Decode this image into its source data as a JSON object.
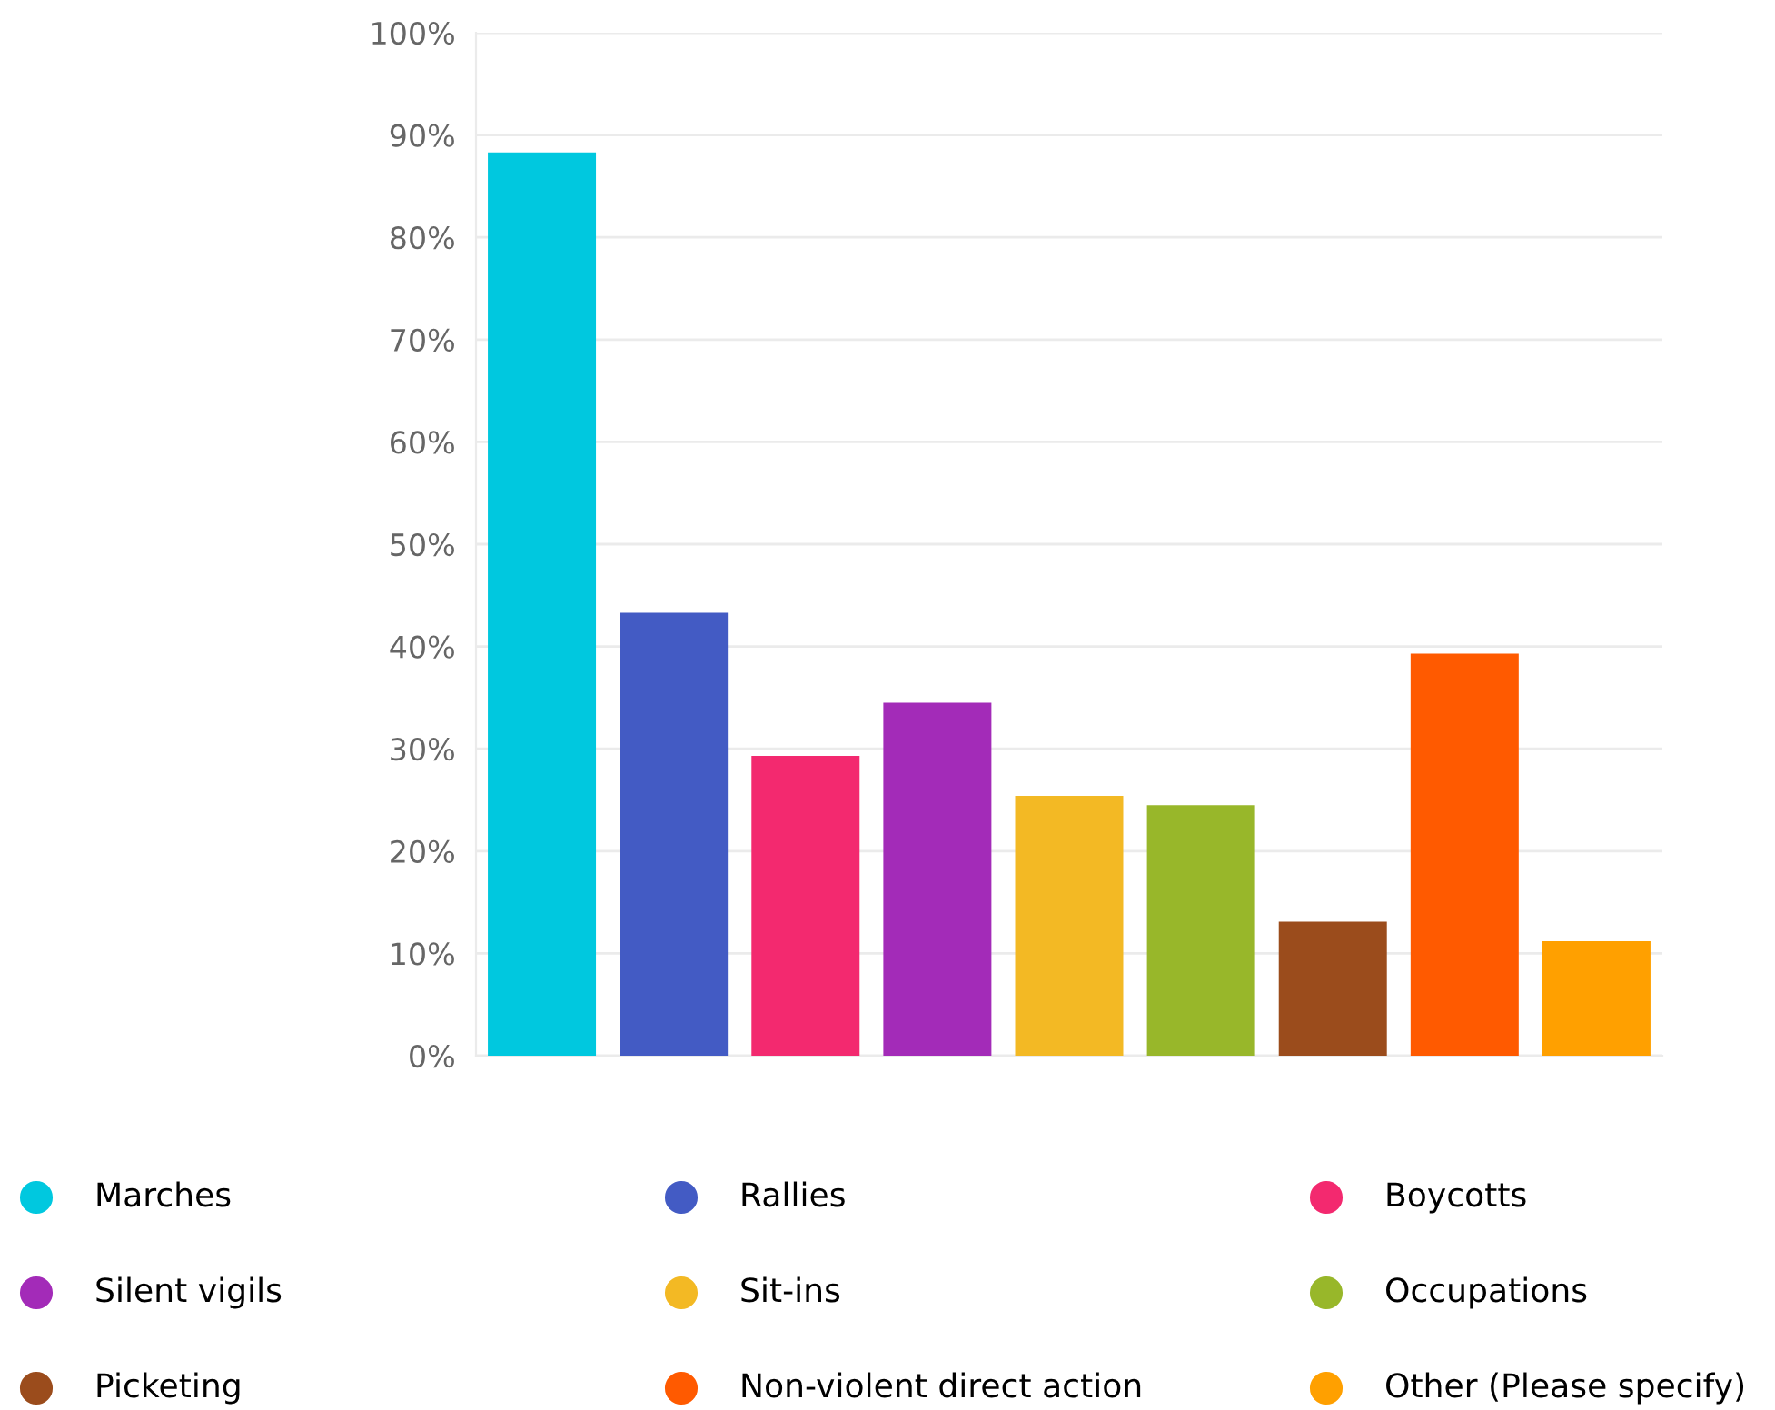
{
  "chart_data": {
    "type": "bar",
    "categories": [
      null
    ],
    "series": [
      {
        "name": "Marches",
        "color": "#00c8df",
        "values": [
          88.3
        ]
      },
      {
        "name": "Rallies",
        "color": "#435bc4",
        "values": [
          43.3
        ]
      },
      {
        "name": "Boycotts",
        "color": "#f3296f",
        "values": [
          29.3
        ]
      },
      {
        "name": "Silent vigils",
        "color": "#a32bb8",
        "values": [
          34.5
        ]
      },
      {
        "name": "Sit-ins",
        "color": "#f3b924",
        "values": [
          25.4
        ]
      },
      {
        "name": "Occupations",
        "color": "#98b72a",
        "values": [
          24.5
        ]
      },
      {
        "name": "Picketing",
        "color": "#9b4c1c",
        "values": [
          13.1
        ]
      },
      {
        "name": "Non-violent direct action",
        "color": "#ff5a00",
        "values": [
          39.3
        ]
      },
      {
        "name": "Other (Please specify)",
        "color": "#ffa000",
        "values": [
          11.2
        ]
      }
    ],
    "ylim": [
      0,
      100
    ],
    "yticks": [
      {
        "value": 0,
        "label": "0%"
      },
      {
        "value": 10,
        "label": "10%"
      },
      {
        "value": 20,
        "label": "20%"
      },
      {
        "value": 30,
        "label": "30%"
      },
      {
        "value": 40,
        "label": "40%"
      },
      {
        "value": 50,
        "label": "50%"
      },
      {
        "value": 60,
        "label": "60%"
      },
      {
        "value": 70,
        "label": "70%"
      },
      {
        "value": 80,
        "label": "80%"
      },
      {
        "value": 90,
        "label": "90%"
      },
      {
        "value": 100,
        "label": "100%"
      }
    ],
    "grid": "y",
    "tick_labels": "y",
    "legend": "bottom"
  }
}
